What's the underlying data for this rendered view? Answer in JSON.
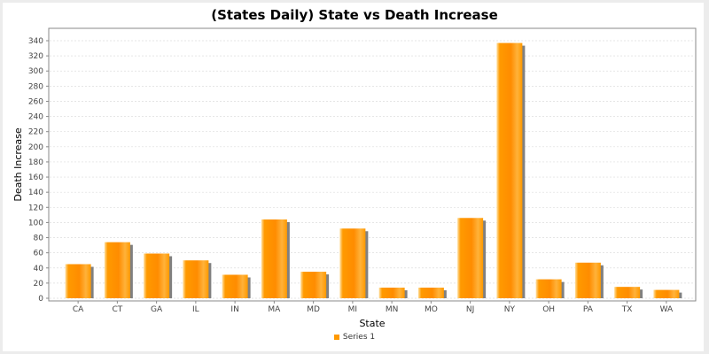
{
  "chart_data": {
    "type": "bar",
    "title": "(States Daily) State vs Death Increase",
    "xlabel": "State",
    "ylabel": "Death Increase",
    "categories": [
      "CA",
      "CT",
      "GA",
      "IL",
      "IN",
      "MA",
      "MD",
      "MI",
      "MN",
      "MO",
      "NJ",
      "NY",
      "OH",
      "PA",
      "TX",
      "WA"
    ],
    "series": [
      {
        "name": "Series 1",
        "values": [
          45,
          74,
          59,
          50,
          31,
          104,
          35,
          92,
          14,
          14,
          106,
          337,
          25,
          47,
          15,
          11
        ]
      }
    ],
    "ylim": [
      0,
      350
    ],
    "yticks": [
      0,
      20,
      40,
      60,
      80,
      100,
      120,
      140,
      160,
      180,
      200,
      220,
      240,
      260,
      280,
      300,
      320,
      340
    ],
    "grid": true,
    "legend": "bottom-center",
    "colors": {
      "bar": "#ff9900",
      "bar_light": "#ffd27a",
      "bar_shadow": "#808080"
    }
  }
}
